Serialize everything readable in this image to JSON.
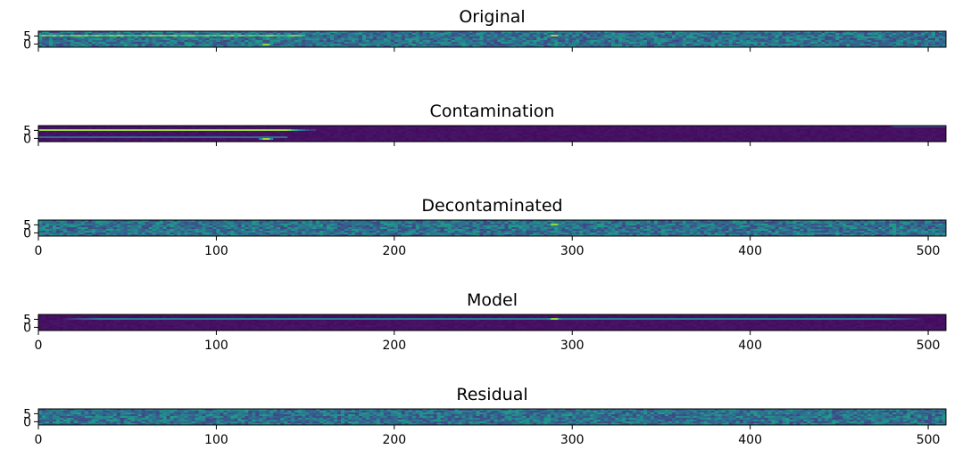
{
  "chart_data": [
    {
      "type": "heatmap",
      "title": "Original",
      "colormap": "viridis",
      "xlim": [
        0,
        510
      ],
      "ylim": [
        -2,
        8
      ],
      "xticks": [
        0,
        100,
        200,
        300,
        400,
        500
      ],
      "xtick_labels_shown": false,
      "yticks": [
        0,
        5
      ],
      "ytick_labels": [
        "0",
        "5"
      ],
      "features": [
        {
          "kind": "bright_band",
          "row": 5,
          "x_from": 0,
          "x_to": 150,
          "level": 0.75
        },
        {
          "kind": "hot_spot",
          "row": 5,
          "x": 290,
          "level": 1.0
        },
        {
          "kind": "hot_spot",
          "row": 0,
          "x": 128,
          "level": 1.0
        }
      ]
    },
    {
      "type": "heatmap",
      "title": "Contamination",
      "colormap": "viridis",
      "xlim": [
        0,
        510
      ],
      "ylim": [
        -2,
        8
      ],
      "xticks": [
        0,
        100,
        200,
        300,
        400,
        500
      ],
      "xtick_labels_shown": false,
      "yticks": [
        0,
        5
      ],
      "ytick_labels": [
        "0",
        "5"
      ],
      "features": [
        {
          "kind": "bright_band",
          "row": 5,
          "x_from": 0,
          "x_to": 155,
          "level": 0.85
        },
        {
          "kind": "faint_band",
          "row": 1,
          "x_from": 0,
          "x_to": 140,
          "level": 0.35
        },
        {
          "kind": "hot_spot",
          "row": 0,
          "x": 128,
          "level": 1.0
        },
        {
          "kind": "faint_band",
          "row": 7,
          "x_from": 480,
          "x_to": 510,
          "level": 0.2
        }
      ]
    },
    {
      "type": "heatmap",
      "title": "Decontaminated",
      "colormap": "viridis",
      "xlim": [
        0,
        510
      ],
      "ylim": [
        -2,
        8
      ],
      "xticks": [
        0,
        100,
        200,
        300,
        400,
        500
      ],
      "xtick_labels": [
        "0",
        "100",
        "200",
        "300",
        "400",
        "500"
      ],
      "yticks": [
        0,
        5
      ],
      "ytick_labels": [
        "0",
        "5"
      ],
      "features": [
        {
          "kind": "hot_spot",
          "row": 5,
          "x": 290,
          "level": 1.0
        }
      ]
    },
    {
      "type": "heatmap",
      "title": "Model",
      "colormap": "viridis",
      "xlim": [
        0,
        510
      ],
      "ylim": [
        -2,
        8
      ],
      "xticks": [
        0,
        100,
        200,
        300,
        400,
        500
      ],
      "xtick_labels": [
        "0",
        "100",
        "200",
        "300",
        "400",
        "500"
      ],
      "yticks": [
        0,
        5
      ],
      "ytick_labels": [
        "0",
        "5"
      ],
      "features": [
        {
          "kind": "smooth_trace",
          "row": 5,
          "x_from": 10,
          "x_to": 500,
          "level": 0.4
        },
        {
          "kind": "hot_spot",
          "row": 5,
          "x": 290,
          "level": 1.0
        }
      ]
    },
    {
      "type": "heatmap",
      "title": "Residual",
      "colormap": "viridis",
      "xlim": [
        0,
        510
      ],
      "ylim": [
        -2,
        8
      ],
      "xticks": [
        0,
        100,
        200,
        300,
        400,
        500
      ],
      "xtick_labels": [
        "0",
        "100",
        "200",
        "300",
        "400",
        "500"
      ],
      "yticks": [
        0,
        5
      ],
      "ytick_labels": [
        "0",
        "5"
      ],
      "features": []
    }
  ]
}
